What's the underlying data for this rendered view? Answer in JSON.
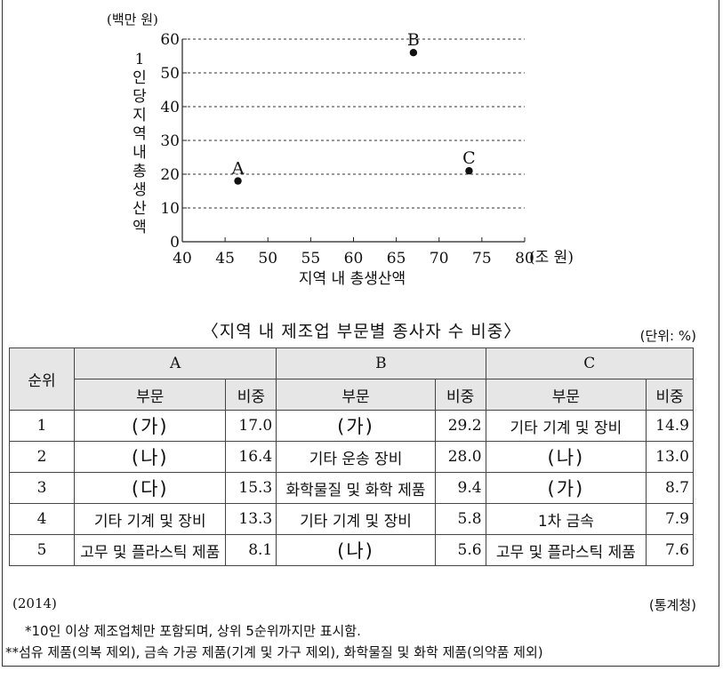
{
  "chart_data": {
    "type": "scatter",
    "y_unit": "(백만 원)",
    "ylabel": "1인당 지역 내 총생산액",
    "xlabel": "지역 내 총생산액",
    "x_unit": "(조 원)",
    "xlim": [
      40,
      80
    ],
    "ylim": [
      0,
      60
    ],
    "x_ticks": [
      "40",
      "45",
      "50",
      "55",
      "60",
      "65",
      "70",
      "75",
      "80"
    ],
    "y_ticks": [
      "0",
      "10",
      "20",
      "30",
      "40",
      "50",
      "60"
    ],
    "grid": "horizontal dashed",
    "points": [
      {
        "label": "A",
        "x": 46.5,
        "y": 18
      },
      {
        "label": "B",
        "x": 67,
        "y": 56
      },
      {
        "label": "C",
        "x": 73.5,
        "y": 21
      }
    ]
  },
  "table": {
    "title": "〈지역 내 제조업 부문별 종사자 수 비중〉",
    "unit": "(단위: %)",
    "rank_header": "순위",
    "groups": [
      "A",
      "B",
      "C"
    ],
    "sub_headers": {
      "sector": "부문",
      "share": "비중"
    },
    "rows": [
      {
        "rank": "1",
        "cells": [
          [
            "(가)",
            "17.0"
          ],
          [
            "(가)",
            "29.2"
          ],
          [
            "기타 기계 및 장비",
            "14.9"
          ]
        ]
      },
      {
        "rank": "2",
        "cells": [
          [
            "(나)",
            "16.4"
          ],
          [
            "기타 운송 장비",
            "28.0"
          ],
          [
            "(나)",
            "13.0"
          ]
        ]
      },
      {
        "rank": "3",
        "cells": [
          [
            "(다)",
            "15.3"
          ],
          [
            "화학물질 및 화학 제품",
            "9.4"
          ],
          [
            "(가)",
            "8.7"
          ]
        ]
      },
      {
        "rank": "4",
        "cells": [
          [
            "기타 기계 및 장비",
            "13.3"
          ],
          [
            "기타 기계 및 장비",
            "5.8"
          ],
          [
            "1차 금속",
            "7.9"
          ]
        ]
      },
      {
        "rank": "5",
        "cells": [
          [
            "고무 및 플라스틱 제품",
            "8.1"
          ],
          [
            "(나)",
            "5.6"
          ],
          [
            "고무 및 플라스틱 제품",
            "7.6"
          ]
        ]
      }
    ]
  },
  "footer": {
    "year": "(2014)",
    "source": "(통계청)",
    "note1": "*10인 이상 제조업체만 포함되며, 상위 5순위까지만 표시함.",
    "note2": "**섬유 제품(의복 제외), 금속 가공 제품(기계 및 가구 제외), 화학물질 및 화학 제품(의약품 제외)"
  }
}
